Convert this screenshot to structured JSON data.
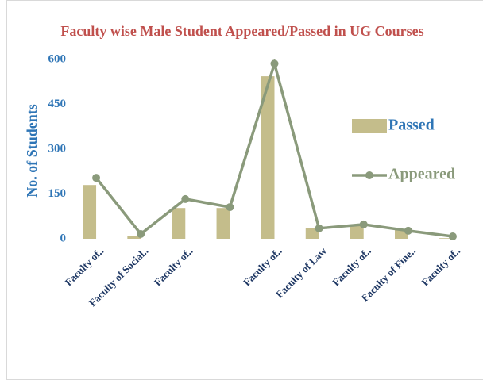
{
  "chart_data": {
    "type": "combo",
    "title": "Faculty wise  Male Student Appeared/Passed in UG Courses",
    "y_label": "No. of Students",
    "categories": [
      "Faculty of..",
      "Faculty of Social..",
      "Faculty of..",
      null,
      "Faculty of..",
      "Faculty of Law",
      "Faculty of..",
      "Faculty of Fine..",
      "Faculty of.."
    ],
    "series": [
      {
        "name": "Passed",
        "type": "bar",
        "color": "#c4bd8b",
        "values": [
          180,
          10,
          103,
          103,
          544,
          35,
          45,
          32,
          2
        ]
      },
      {
        "name": "Appeared",
        "type": "line",
        "color": "#8a9a7b",
        "values": [
          204,
          16,
          133,
          106,
          586,
          35,
          48,
          27,
          8
        ]
      }
    ],
    "ylim": [
      0,
      600
    ],
    "yticks": [
      0,
      150,
      300,
      450,
      600
    ],
    "grid": false,
    "legend": "right"
  }
}
